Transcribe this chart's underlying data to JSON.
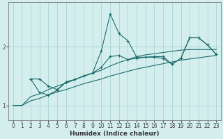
{
  "xlabel": "Humidex (Indice chaleur)",
  "bg_color": "#d4eeee",
  "line_color": "#1a6b6b",
  "grid_color": "#aad4d4",
  "xlim": [
    -0.5,
    23.5
  ],
  "ylim": [
    0.75,
    2.75
  ],
  "yticks": [
    1,
    2
  ],
  "xticks": [
    0,
    1,
    2,
    3,
    4,
    5,
    6,
    7,
    8,
    9,
    10,
    11,
    12,
    13,
    14,
    15,
    16,
    17,
    18,
    19,
    20,
    21,
    22,
    23
  ],
  "line1_x": [
    0,
    1,
    2,
    3,
    4,
    5,
    6,
    7,
    8,
    9,
    10,
    11,
    12,
    13,
    14,
    15,
    16,
    17,
    18,
    19,
    20,
    21,
    22,
    23
  ],
  "line1_y": [
    1.0,
    1.0,
    1.08,
    1.12,
    1.18,
    1.23,
    1.27,
    1.32,
    1.37,
    1.41,
    1.45,
    1.5,
    1.54,
    1.58,
    1.62,
    1.65,
    1.68,
    1.71,
    1.74,
    1.77,
    1.79,
    1.81,
    1.83,
    1.85
  ],
  "line2_x": [
    0,
    1,
    2,
    3,
    4,
    5,
    6,
    7,
    8,
    9,
    10,
    11,
    12,
    13,
    14,
    15,
    16,
    17,
    18,
    19,
    20,
    21,
    22,
    23
  ],
  "line2_y": [
    1.0,
    1.0,
    1.15,
    1.2,
    1.27,
    1.33,
    1.38,
    1.44,
    1.5,
    1.55,
    1.6,
    1.67,
    1.73,
    1.78,
    1.83,
    1.86,
    1.88,
    1.9,
    1.92,
    1.94,
    1.95,
    1.95,
    1.95,
    1.95
  ],
  "line3_x": [
    2,
    3,
    4,
    5,
    6,
    7,
    8,
    9,
    10,
    11,
    12,
    13,
    14,
    15,
    16,
    17,
    18,
    19,
    20,
    21,
    22,
    23
  ],
  "line3_y": [
    1.45,
    1.45,
    1.33,
    1.27,
    1.4,
    1.44,
    1.5,
    1.55,
    1.93,
    2.55,
    2.22,
    2.1,
    1.82,
    1.82,
    1.83,
    1.83,
    1.7,
    1.8,
    2.15,
    2.15,
    2.03,
    1.87
  ],
  "line4_x": [
    2,
    3,
    4,
    5,
    6,
    7,
    8,
    9,
    10,
    11,
    12,
    13,
    14,
    15,
    16,
    17,
    18,
    19,
    20,
    21,
    22,
    23
  ],
  "line4_y": [
    1.45,
    1.22,
    1.18,
    1.26,
    1.4,
    1.44,
    1.5,
    1.55,
    1.65,
    1.83,
    1.85,
    1.78,
    1.8,
    1.82,
    1.82,
    1.8,
    1.7,
    1.8,
    2.15,
    2.15,
    2.03,
    1.87
  ]
}
